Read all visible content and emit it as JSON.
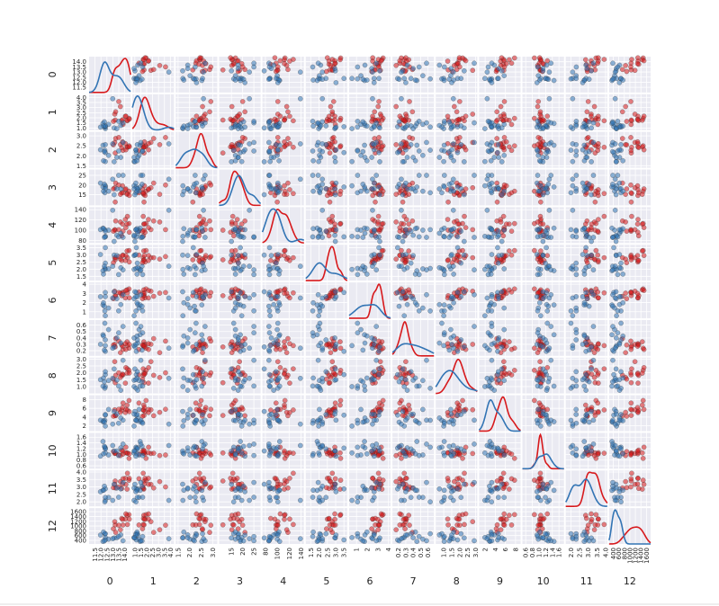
{
  "chart_data": {
    "type": "scatter_matrix",
    "labels": [
      "0",
      "1",
      "2",
      "3",
      "4",
      "5",
      "6",
      "7",
      "8",
      "9",
      "10",
      "11",
      "12"
    ],
    "lims": [
      [
        11,
        14.5
      ],
      [
        0.8,
        4.3
      ],
      [
        1.4,
        3.2
      ],
      [
        9.5,
        28
      ],
      [
        75,
        145
      ],
      [
        1.2,
        3.7
      ],
      [
        0.3,
        4.2
      ],
      [
        0.12,
        0.68
      ],
      [
        0.5,
        3.1
      ],
      [
        0.8,
        9
      ],
      [
        0.5,
        1.75
      ],
      [
        1.7,
        4.1
      ],
      [
        250,
        1750
      ]
    ],
    "ticks": [
      [
        11.5,
        {
          "value": 12,
          "label": "12.0"
        },
        12.5,
        {
          "value": 13,
          "label": "13.0"
        },
        13.5,
        {
          "value": 14,
          "label": "14.0"
        }
      ],
      [
        {
          "value": 1,
          "label": "1.0"
        },
        1.5,
        {
          "value": 2,
          "label": "2.0"
        },
        2.5,
        {
          "value": 3,
          "label": "3.0"
        },
        3.5,
        {
          "value": 4,
          "label": "4.0"
        }
      ],
      [
        1.5,
        {
          "value": 2,
          "label": "2.0"
        },
        2.5,
        {
          "value": 3,
          "label": "3.0"
        }
      ],
      [
        15,
        20,
        25
      ],
      [
        80,
        100,
        120,
        140
      ],
      [
        1.5,
        {
          "value": 2,
          "label": "2.0"
        },
        2.5,
        {
          "value": 3,
          "label": "3.0"
        },
        3.5
      ],
      [
        1,
        2,
        3,
        4
      ],
      [
        0.2,
        0.3,
        0.4,
        0.5,
        0.6
      ],
      [
        {
          "value": 1,
          "label": "1.0"
        },
        1.5,
        {
          "value": 2,
          "label": "2.0"
        },
        2.5,
        {
          "value": 3,
          "label": "3.0"
        }
      ],
      [
        2,
        4,
        6,
        8
      ],
      [
        0.6,
        0.8,
        {
          "value": 1,
          "label": "1.0"
        },
        1.2,
        1.4,
        1.6
      ],
      [
        {
          "value": 2,
          "label": "2.0"
        },
        2.5,
        {
          "value": 3,
          "label": "3.0"
        },
        3.5,
        {
          "value": 4,
          "label": "4.0"
        }
      ],
      [
        400,
        600,
        800,
        1000,
        1200,
        1400,
        1600
      ]
    ],
    "grid": true,
    "series": [
      {
        "color": "#d7191c",
        "values": [
          [
            14.23,
            13.2,
            13.16,
            14.37,
            13.24,
            14.2,
            14.39,
            14.06,
            13.86,
            13.75,
            14.1,
            13.64,
            13.05,
            13.82,
            13.5
          ],
          [
            1.71,
            1.78,
            2.36,
            1.95,
            2.59,
            1.76,
            1.87,
            2.15,
            1.35,
            1.73,
            2.16,
            3.1,
            1.65,
            1.81,
            3.59
          ],
          [
            2.43,
            2.14,
            2.67,
            2.5,
            2.87,
            2.45,
            2.45,
            2.61,
            2.27,
            2.41,
            2.3,
            2.56,
            2.55,
            2.7,
            2.92
          ],
          [
            15.6,
            11.2,
            18.6,
            16.8,
            21,
            15.2,
            14.6,
            17.6,
            16,
            16,
            18,
            15.2,
            18,
            19.6,
            20
          ],
          [
            127,
            100,
            101,
            113,
            118,
            112,
            96,
            121,
            98,
            89,
            105,
            116,
            98,
            112,
            101
          ],
          [
            2.8,
            2.65,
            2.8,
            3.3,
            2.8,
            3.27,
            2.5,
            2.6,
            2.98,
            2.6,
            2.95,
            2.7,
            2.45,
            2.95,
            2.88
          ],
          [
            3.06,
            2.76,
            3.24,
            3.49,
            2.69,
            3.39,
            2.52,
            2.51,
            3.15,
            2.76,
            3.32,
            3.03,
            2.43,
            3.0,
            3.1
          ],
          [
            0.28,
            0.26,
            0.3,
            0.24,
            0.39,
            0.34,
            0.3,
            0.31,
            0.22,
            0.29,
            0.22,
            0.17,
            0.29,
            0.27,
            0.35
          ],
          [
            2.29,
            1.28,
            2.81,
            2.18,
            1.82,
            1.97,
            1.98,
            1.25,
            1.85,
            1.81,
            2.38,
            1.66,
            1.54,
            1.9,
            2.0
          ],
          [
            5.64,
            4.38,
            5.68,
            7.8,
            4.32,
            6.75,
            5.25,
            5.05,
            7.22,
            5.6,
            5.75,
            5.1,
            4.2,
            6.2,
            5.8
          ],
          [
            1.04,
            1.05,
            1.03,
            0.86,
            1.04,
            1.05,
            1.02,
            1.06,
            1.01,
            1.15,
            1.25,
            0.96,
            1.1,
            1.12,
            0.98
          ],
          [
            3.92,
            3.4,
            3.17,
            3.45,
            2.93,
            2.85,
            3.58,
            3.58,
            3.55,
            2.9,
            3.17,
            3.36,
            2.95,
            3.2,
            3.0
          ],
          [
            1065,
            1050,
            1185,
            1480,
            735,
            1450,
            1290,
            1295,
            1045,
            1320,
            1510,
            845,
            885,
            1280,
            1035
          ]
        ]
      },
      {
        "color": "#3274b4",
        "values": [
          [
            12.37,
            12.33,
            12.64,
            13.67,
            12.37,
            12.17,
            12.37,
            13.11,
            13.34,
            12.21,
            12.29,
            13.86,
            13.49,
            12.99,
            11.96
          ],
          [
            0.94,
            1.1,
            1.36,
            1.25,
            1.13,
            1.45,
            1.21,
            1.01,
            0.94,
            1.19,
            1.61,
            1.51,
            1.66,
            3.87,
            1.09
          ],
          [
            1.71,
            2.28,
            2.02,
            1.92,
            2.16,
            2.53,
            2.56,
            1.7,
            1.92,
            1.75,
            2.21,
            2.67,
            2.24,
            2.6,
            2.3
          ],
          [
            19.6,
            16,
            16.8,
            18,
            19,
            19,
            18.1,
            15,
            18,
            16.8,
            20.4,
            25,
            25,
            23,
            21
          ],
          [
            88,
            101,
            100,
            94,
            87,
            104,
            98,
            78,
            90,
            103,
            86,
            86,
            87,
            139,
            101
          ],
          [
            1.98,
            2.05,
            2.02,
            2.1,
            3.5,
            1.89,
            2.42,
            2.98,
            2.95,
            1.65,
            2.2,
            1.95,
            1.62,
            2.2,
            3.02
          ],
          [
            0.57,
            1.09,
            1.41,
            1.79,
            3.1,
            1.75,
            2.65,
            3.18,
            2.43,
            1.98,
            1.6,
            2.86,
            1.1,
            2.5,
            2.65
          ],
          [
            0.28,
            0.63,
            0.53,
            0.32,
            0.19,
            0.45,
            0.37,
            0.26,
            0.4,
            0.43,
            0.21,
            0.58,
            0.48,
            0.24,
            0.3
          ],
          [
            1.0,
            0.88,
            1.44,
            0.73,
            1.87,
            1.03,
            2.08,
            2.28,
            1.46,
            1.62,
            1.35,
            2.91,
            1.04,
            1.6,
            1.5
          ],
          [
            1.95,
            3.27,
            5.75,
            3.8,
            4.45,
            2.95,
            4.6,
            5.3,
            4.68,
            3.17,
            2.85,
            3.3,
            2.6,
            2.4,
            3.3
          ],
          [
            1.05,
            1.25,
            0.98,
            1.23,
            1.22,
            1.45,
            1.19,
            1.12,
            1.12,
            1.02,
            1.28,
            1.36,
            0.96,
            1.31,
            0.94
          ],
          [
            2.1,
            2.0,
            2.3,
            2.87,
            2.87,
            2.77,
            2.3,
            3.18,
            2.93,
            2.78,
            3.05,
            3.3,
            2.31,
            2.1,
            2.68
          ],
          [
            520,
            680,
            450,
            630,
            420,
            355,
            678,
            502,
            510,
            750,
            380,
            385,
            562,
            470,
            625
          ]
        ]
      }
    ]
  }
}
